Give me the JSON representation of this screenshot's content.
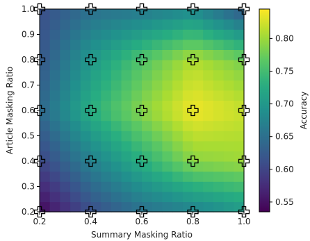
{
  "chart_data": {
    "type": "heatmap",
    "xlabel": "Summary Masking Ratio",
    "ylabel": "Article Masking Ratio",
    "xlim": [
      0.2,
      1.0
    ],
    "ylim": [
      0.2,
      1.0
    ],
    "x_ticks": [
      "0.2",
      "0.4",
      "0.6",
      "0.8",
      "1.0"
    ],
    "y_ticks": [
      "0.2",
      "0.3",
      "0.4",
      "0.5",
      "0.6",
      "0.7",
      "0.8",
      "0.9",
      "1.0"
    ],
    "colorbar": {
      "label": "Accuracy",
      "range": [
        0.535,
        0.845
      ],
      "ticks": [
        "0.55",
        "0.60",
        "0.65",
        "0.70",
        "0.75",
        "0.80"
      ],
      "tick_values": [
        0.55,
        0.6,
        0.65,
        0.7,
        0.75,
        0.8
      ],
      "colormap": "viridis"
    },
    "grid_resolution": 20,
    "measured_points": {
      "x": [
        0.2,
        0.4,
        0.6,
        0.8,
        1.0
      ],
      "y": [
        0.2,
        0.4,
        0.6,
        0.8,
        1.0
      ],
      "accuracy": [
        [
          0.54,
          0.61,
          0.65,
          0.67,
          0.7
        ],
        [
          0.6,
          0.67,
          0.73,
          0.79,
          0.8
        ],
        [
          0.64,
          0.73,
          0.79,
          0.84,
          0.82
        ],
        [
          0.62,
          0.7,
          0.76,
          0.81,
          0.78
        ],
        [
          0.61,
          0.65,
          0.66,
          0.68,
          0.62
        ]
      ],
      "marker": "plus"
    }
  }
}
